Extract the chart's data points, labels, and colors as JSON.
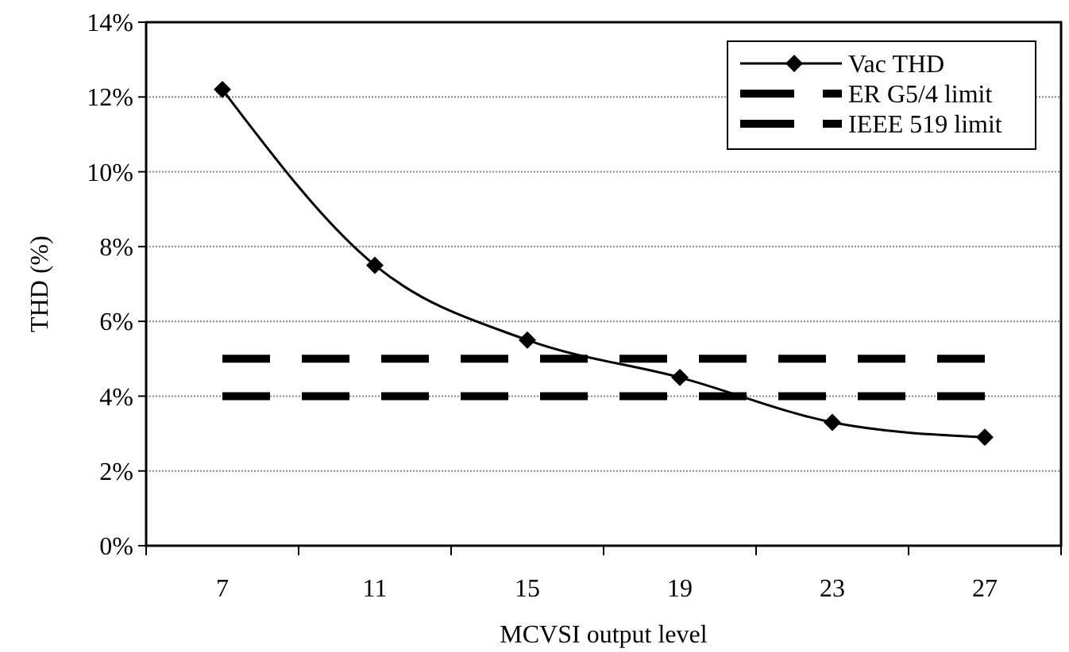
{
  "chart_data": {
    "type": "line",
    "xlabel": "MCVSI output level",
    "ylabel": "THD (%)",
    "categories": [
      "7",
      "11",
      "15",
      "19",
      "23",
      "27"
    ],
    "series": [
      {
        "name": "Vac THD",
        "color": "#000000",
        "values": [
          12.2,
          7.5,
          5.5,
          4.5,
          3.3,
          2.9
        ],
        "marker": "diamond",
        "line_style": "solid"
      },
      {
        "name": "ER G5/4 limit",
        "color": "#000000",
        "values": [
          5,
          5,
          5,
          5,
          5,
          5
        ],
        "marker": "none",
        "line_style": "dashed"
      },
      {
        "name": "IEEE 519 limit",
        "color": "#000000",
        "values": [
          4,
          4,
          4,
          4,
          4,
          4
        ],
        "marker": "none",
        "line_style": "dashed"
      }
    ],
    "ylim": [
      0,
      14
    ],
    "yticks": [
      {
        "value": 0,
        "label": "0%"
      },
      {
        "value": 2,
        "label": "2%"
      },
      {
        "value": 4,
        "label": "4%"
      },
      {
        "value": 6,
        "label": "6%"
      },
      {
        "value": 8,
        "label": "8%"
      },
      {
        "value": 10,
        "label": "10%"
      },
      {
        "value": 12,
        "label": "12%"
      },
      {
        "value": 14,
        "label": "14%"
      }
    ],
    "grid": "y",
    "legend": "top right"
  }
}
